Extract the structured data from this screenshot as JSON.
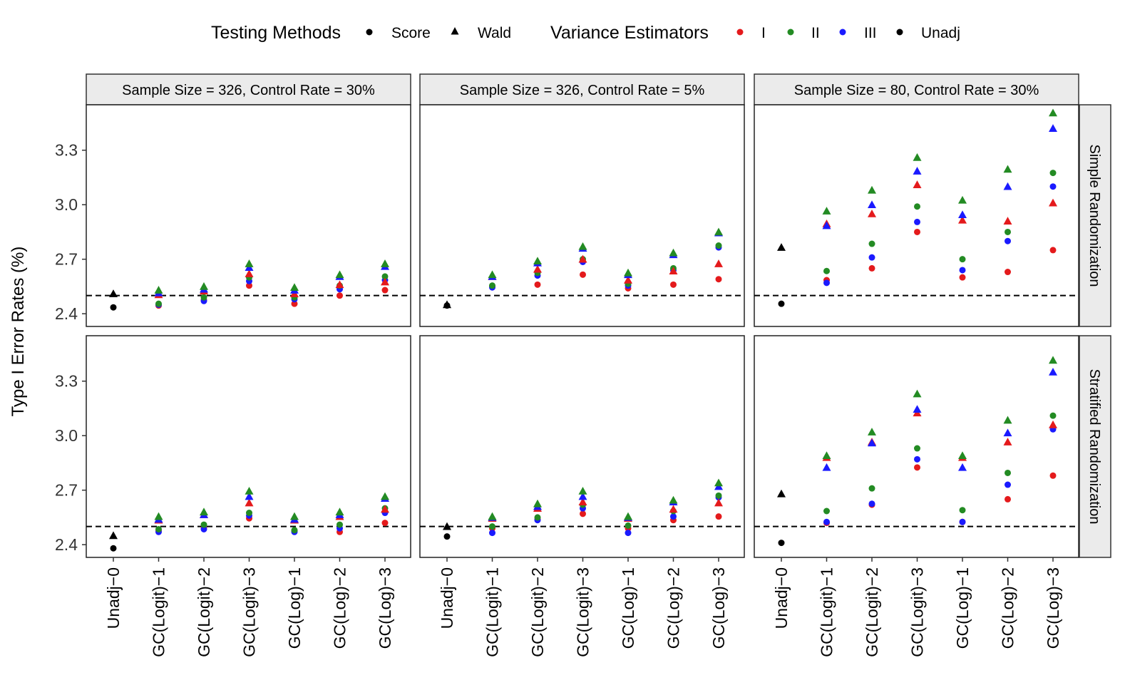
{
  "chart_data": {
    "type": "scatter",
    "ylabel": "Type I Error Rates (%)",
    "ylim": [
      2.33,
      3.55
    ],
    "yticks": [
      2.4,
      2.7,
      3.0,
      3.3
    ],
    "ytick_labels": [
      "2.4",
      "2.7",
      "3.0",
      "3.3"
    ],
    "reference_line": 2.5,
    "categories": [
      "Unadj−0",
      "GC(Logit)−1",
      "GC(Logit)−2",
      "GC(Logit)−3",
      "GC(Log)−1",
      "GC(Log)−2",
      "GC(Log)−3"
    ],
    "legend": {
      "testing_title": "Testing Methods",
      "testing": [
        {
          "key": "score",
          "label": "Score",
          "shape": "circle"
        },
        {
          "key": "wald",
          "label": "Wald",
          "shape": "triangle"
        }
      ],
      "variance_title": "Variance Estimators",
      "variance": [
        {
          "key": "I",
          "label": "I",
          "color": "#e41a1c"
        },
        {
          "key": "II",
          "label": "II",
          "color": "#238b23"
        },
        {
          "key": "III",
          "label": "III",
          "color": "#1a1aff"
        },
        {
          "key": "Unadj",
          "label": "Unadj",
          "color": "#000000"
        }
      ]
    },
    "col_facets": [
      "Sample Size = 326, Control Rate = 30%",
      "Sample Size = 326, Control Rate = 5%",
      "Sample Size = 80, Control Rate = 30%"
    ],
    "row_facets": [
      "Simple Randomization",
      "Stratified Randomization"
    ],
    "panels": [
      {
        "row": 0,
        "col": 0,
        "unadj": {
          "score": 2.435,
          "wald": 2.51
        },
        "series": {
          "score": {
            "I": [
              2.445,
              2.475,
              2.555,
              2.455,
              2.5,
              2.53
            ],
            "II": [
              2.455,
              2.49,
              2.6,
              2.49,
              2.555,
              2.605
            ],
            "III": [
              2.45,
              2.47,
              2.58,
              2.48,
              2.535,
              2.585
            ]
          },
          "wald": {
            "I": [
              2.505,
              2.525,
              2.62,
              2.51,
              2.56,
              2.575
            ],
            "II": [
              2.53,
              2.55,
              2.675,
              2.545,
              2.615,
              2.675
            ],
            "III": [
              2.515,
              2.535,
              2.655,
              2.53,
              2.605,
              2.66
            ]
          }
        }
      },
      {
        "row": 0,
        "col": 1,
        "unadj": {
          "score": 2.445,
          "wald": 2.45
        },
        "series": {
          "score": {
            "I": [
              2.55,
              2.56,
              2.615,
              2.54,
              2.56,
              2.59
            ],
            "II": [
              2.555,
              2.625,
              2.7,
              2.565,
              2.65,
              2.775
            ],
            "III": [
              2.545,
              2.61,
              2.685,
              2.555,
              2.64,
              2.765
            ]
          },
          "wald": {
            "I": [
              2.605,
              2.645,
              2.7,
              2.585,
              2.635,
              2.675
            ],
            "II": [
              2.615,
              2.69,
              2.77,
              2.625,
              2.735,
              2.85
            ],
            "III": [
              2.605,
              2.68,
              2.76,
              2.615,
              2.725,
              2.845
            ]
          }
        }
      },
      {
        "row": 0,
        "col": 2,
        "unadj": {
          "score": 2.455,
          "wald": 2.765
        },
        "series": {
          "score": {
            "I": [
              2.585,
              2.65,
              2.85,
              2.6,
              2.63,
              2.75
            ],
            "II": [
              2.635,
              2.785,
              2.99,
              2.7,
              2.85,
              3.175
            ],
            "III": [
              2.57,
              2.71,
              2.905,
              2.64,
              2.8,
              3.1
            ]
          },
          "wald": {
            "I": [
              2.895,
              2.95,
              3.11,
              2.915,
              2.91,
              3.01
            ],
            "II": [
              2.965,
              3.08,
              3.26,
              3.025,
              3.195,
              3.505
            ],
            "III": [
              2.885,
              3.0,
              3.185,
              2.945,
              3.1,
              3.42
            ]
          }
        }
      },
      {
        "row": 1,
        "col": 0,
        "unadj": {
          "score": 2.38,
          "wald": 2.45
        },
        "series": {
          "score": {
            "I": [
              2.475,
              2.49,
              2.545,
              2.475,
              2.47,
              2.52
            ],
            "II": [
              2.485,
              2.51,
              2.575,
              2.48,
              2.51,
              2.6
            ],
            "III": [
              2.47,
              2.485,
              2.56,
              2.47,
              2.49,
              2.575
            ]
          },
          "wald": {
            "I": [
              2.535,
              2.565,
              2.63,
              2.535,
              2.555,
              2.595
            ],
            "II": [
              2.555,
              2.58,
              2.695,
              2.555,
              2.58,
              2.665
            ],
            "III": [
              2.54,
              2.565,
              2.665,
              2.54,
              2.565,
              2.655
            ]
          }
        }
      },
      {
        "row": 1,
        "col": 1,
        "unadj": {
          "score": 2.445,
          "wald": 2.5
        },
        "series": {
          "score": {
            "I": [
              2.49,
              2.54,
              2.57,
              2.49,
              2.535,
              2.555
            ],
            "II": [
              2.5,
              2.55,
              2.62,
              2.505,
              2.585,
              2.67
            ],
            "III": [
              2.465,
              2.535,
              2.6,
              2.465,
              2.555,
              2.66
            ]
          },
          "wald": {
            "I": [
              2.545,
              2.6,
              2.635,
              2.545,
              2.595,
              2.63
            ],
            "II": [
              2.555,
              2.625,
              2.695,
              2.555,
              2.645,
              2.74
            ],
            "III": [
              2.55,
              2.61,
              2.665,
              2.55,
              2.635,
              2.72
            ]
          }
        }
      },
      {
        "row": 1,
        "col": 2,
        "unadj": {
          "score": 2.41,
          "wald": 2.68
        },
        "series": {
          "score": {
            "I": [
              2.52,
              2.62,
              2.825,
              2.525,
              2.65,
              2.78
            ],
            "II": [
              2.585,
              2.71,
              2.93,
              2.59,
              2.795,
              3.11
            ],
            "III": [
              2.525,
              2.625,
              2.87,
              2.525,
              2.73,
              3.035
            ]
          },
          "wald": {
            "I": [
              2.88,
              2.965,
              3.125,
              2.88,
              2.965,
              3.06
            ],
            "II": [
              2.89,
              3.02,
              3.23,
              2.89,
              3.085,
              3.415
            ],
            "III": [
              2.825,
              2.96,
              3.145,
              2.825,
              3.015,
              3.35
            ]
          }
        }
      }
    ]
  }
}
